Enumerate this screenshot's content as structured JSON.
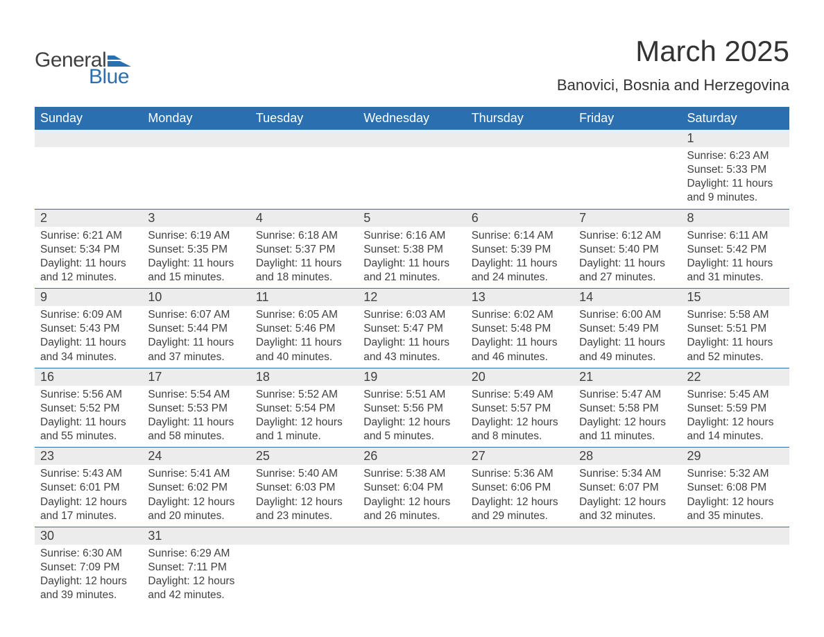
{
  "brand": {
    "word1": "General",
    "word2": "Blue",
    "shape_color": "#2a6fb0"
  },
  "title": "March 2025",
  "location": "Banovici, Bosnia and Herzegovina",
  "colors": {
    "header_bg": "#2a6fb0",
    "header_text": "#ffffff",
    "daynum_bg": "#ececec",
    "border": "#2a6fb0",
    "body_text": "#404040",
    "background": "#ffffff"
  },
  "fonts": {
    "title_size": 42,
    "location_size": 22,
    "header_size": 18,
    "daynum_size": 18,
    "data_size": 15.5
  },
  "daynames": [
    "Sunday",
    "Monday",
    "Tuesday",
    "Wednesday",
    "Thursday",
    "Friday",
    "Saturday"
  ],
  "weeks": [
    [
      null,
      null,
      null,
      null,
      null,
      null,
      {
        "n": "1",
        "sunrise": "Sunrise: 6:23 AM",
        "sunset": "Sunset: 5:33 PM",
        "daylight": "Daylight: 11 hours and 9 minutes."
      }
    ],
    [
      {
        "n": "2",
        "sunrise": "Sunrise: 6:21 AM",
        "sunset": "Sunset: 5:34 PM",
        "daylight": "Daylight: 11 hours and 12 minutes."
      },
      {
        "n": "3",
        "sunrise": "Sunrise: 6:19 AM",
        "sunset": "Sunset: 5:35 PM",
        "daylight": "Daylight: 11 hours and 15 minutes."
      },
      {
        "n": "4",
        "sunrise": "Sunrise: 6:18 AM",
        "sunset": "Sunset: 5:37 PM",
        "daylight": "Daylight: 11 hours and 18 minutes."
      },
      {
        "n": "5",
        "sunrise": "Sunrise: 6:16 AM",
        "sunset": "Sunset: 5:38 PM",
        "daylight": "Daylight: 11 hours and 21 minutes."
      },
      {
        "n": "6",
        "sunrise": "Sunrise: 6:14 AM",
        "sunset": "Sunset: 5:39 PM",
        "daylight": "Daylight: 11 hours and 24 minutes."
      },
      {
        "n": "7",
        "sunrise": "Sunrise: 6:12 AM",
        "sunset": "Sunset: 5:40 PM",
        "daylight": "Daylight: 11 hours and 27 minutes."
      },
      {
        "n": "8",
        "sunrise": "Sunrise: 6:11 AM",
        "sunset": "Sunset: 5:42 PM",
        "daylight": "Daylight: 11 hours and 31 minutes."
      }
    ],
    [
      {
        "n": "9",
        "sunrise": "Sunrise: 6:09 AM",
        "sunset": "Sunset: 5:43 PM",
        "daylight": "Daylight: 11 hours and 34 minutes."
      },
      {
        "n": "10",
        "sunrise": "Sunrise: 6:07 AM",
        "sunset": "Sunset: 5:44 PM",
        "daylight": "Daylight: 11 hours and 37 minutes."
      },
      {
        "n": "11",
        "sunrise": "Sunrise: 6:05 AM",
        "sunset": "Sunset: 5:46 PM",
        "daylight": "Daylight: 11 hours and 40 minutes."
      },
      {
        "n": "12",
        "sunrise": "Sunrise: 6:03 AM",
        "sunset": "Sunset: 5:47 PM",
        "daylight": "Daylight: 11 hours and 43 minutes."
      },
      {
        "n": "13",
        "sunrise": "Sunrise: 6:02 AM",
        "sunset": "Sunset: 5:48 PM",
        "daylight": "Daylight: 11 hours and 46 minutes."
      },
      {
        "n": "14",
        "sunrise": "Sunrise: 6:00 AM",
        "sunset": "Sunset: 5:49 PM",
        "daylight": "Daylight: 11 hours and 49 minutes."
      },
      {
        "n": "15",
        "sunrise": "Sunrise: 5:58 AM",
        "sunset": "Sunset: 5:51 PM",
        "daylight": "Daylight: 11 hours and 52 minutes."
      }
    ],
    [
      {
        "n": "16",
        "sunrise": "Sunrise: 5:56 AM",
        "sunset": "Sunset: 5:52 PM",
        "daylight": "Daylight: 11 hours and 55 minutes."
      },
      {
        "n": "17",
        "sunrise": "Sunrise: 5:54 AM",
        "sunset": "Sunset: 5:53 PM",
        "daylight": "Daylight: 11 hours and 58 minutes."
      },
      {
        "n": "18",
        "sunrise": "Sunrise: 5:52 AM",
        "sunset": "Sunset: 5:54 PM",
        "daylight": "Daylight: 12 hours and 1 minute."
      },
      {
        "n": "19",
        "sunrise": "Sunrise: 5:51 AM",
        "sunset": "Sunset: 5:56 PM",
        "daylight": "Daylight: 12 hours and 5 minutes."
      },
      {
        "n": "20",
        "sunrise": "Sunrise: 5:49 AM",
        "sunset": "Sunset: 5:57 PM",
        "daylight": "Daylight: 12 hours and 8 minutes."
      },
      {
        "n": "21",
        "sunrise": "Sunrise: 5:47 AM",
        "sunset": "Sunset: 5:58 PM",
        "daylight": "Daylight: 12 hours and 11 minutes."
      },
      {
        "n": "22",
        "sunrise": "Sunrise: 5:45 AM",
        "sunset": "Sunset: 5:59 PM",
        "daylight": "Daylight: 12 hours and 14 minutes."
      }
    ],
    [
      {
        "n": "23",
        "sunrise": "Sunrise: 5:43 AM",
        "sunset": "Sunset: 6:01 PM",
        "daylight": "Daylight: 12 hours and 17 minutes."
      },
      {
        "n": "24",
        "sunrise": "Sunrise: 5:41 AM",
        "sunset": "Sunset: 6:02 PM",
        "daylight": "Daylight: 12 hours and 20 minutes."
      },
      {
        "n": "25",
        "sunrise": "Sunrise: 5:40 AM",
        "sunset": "Sunset: 6:03 PM",
        "daylight": "Daylight: 12 hours and 23 minutes."
      },
      {
        "n": "26",
        "sunrise": "Sunrise: 5:38 AM",
        "sunset": "Sunset: 6:04 PM",
        "daylight": "Daylight: 12 hours and 26 minutes."
      },
      {
        "n": "27",
        "sunrise": "Sunrise: 5:36 AM",
        "sunset": "Sunset: 6:06 PM",
        "daylight": "Daylight: 12 hours and 29 minutes."
      },
      {
        "n": "28",
        "sunrise": "Sunrise: 5:34 AM",
        "sunset": "Sunset: 6:07 PM",
        "daylight": "Daylight: 12 hours and 32 minutes."
      },
      {
        "n": "29",
        "sunrise": "Sunrise: 5:32 AM",
        "sunset": "Sunset: 6:08 PM",
        "daylight": "Daylight: 12 hours and 35 minutes."
      }
    ],
    [
      {
        "n": "30",
        "sunrise": "Sunrise: 6:30 AM",
        "sunset": "Sunset: 7:09 PM",
        "daylight": "Daylight: 12 hours and 39 minutes."
      },
      {
        "n": "31",
        "sunrise": "Sunrise: 6:29 AM",
        "sunset": "Sunset: 7:11 PM",
        "daylight": "Daylight: 12 hours and 42 minutes."
      },
      null,
      null,
      null,
      null,
      null
    ]
  ]
}
